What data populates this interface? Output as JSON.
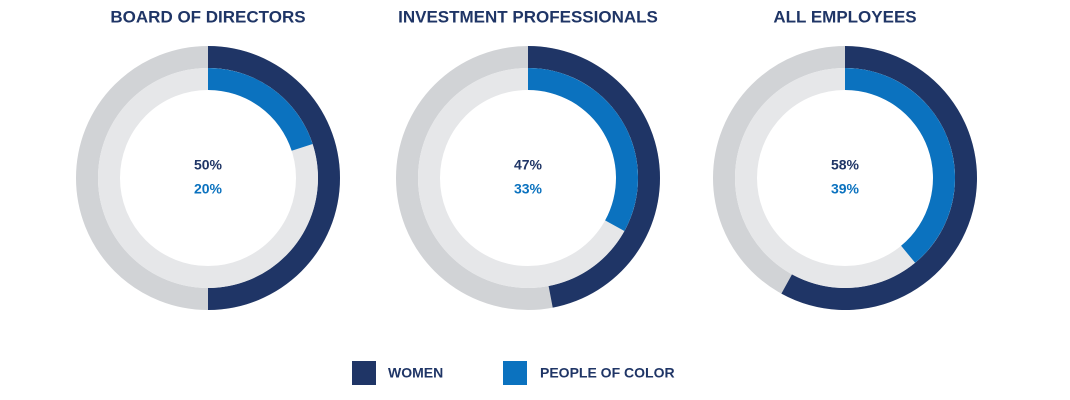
{
  "chart_data": {
    "type": "donut",
    "categories": [
      "BOARD OF DIRECTORS",
      "INVESTMENT PROFESSIONALS",
      "ALL EMPLOYEES"
    ],
    "series": [
      {
        "name": "WOMEN",
        "color": "#1f3566",
        "values": [
          50,
          47,
          58
        ],
        "value_labels": [
          "50%",
          "47%",
          "58%"
        ]
      },
      {
        "name": "PEOPLE OF COLOR",
        "color": "#0b72bf",
        "values": [
          20,
          33,
          39
        ],
        "value_labels": [
          "20%",
          "33%",
          "39%"
        ]
      }
    ]
  }
}
